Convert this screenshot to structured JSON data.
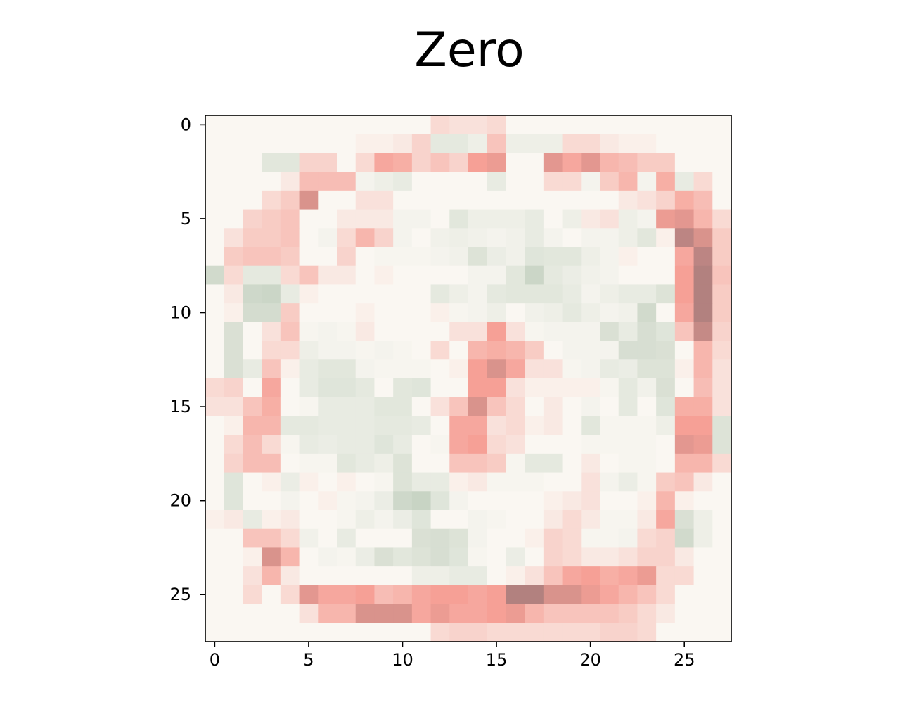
{
  "chart_data": {
    "type": "heatmap",
    "title": "Zero",
    "xlabel": "",
    "ylabel": "",
    "rows": 28,
    "cols": 28,
    "xlim": [
      -0.5,
      27.5
    ],
    "ylim": [
      27.5,
      -0.5
    ],
    "x_ticks": [
      0,
      5,
      10,
      15,
      20,
      25
    ],
    "y_ticks": [
      0,
      5,
      10,
      15,
      20,
      25
    ],
    "x_tick_labels": [
      "0",
      "5",
      "10",
      "15",
      "20",
      "25"
    ],
    "y_tick_labels": [
      "0",
      "5",
      "10",
      "15",
      "20",
      "25"
    ],
    "colormap": {
      "min_color": "#a87c7c",
      "mid_color": "#faf7f2",
      "max_color": "#bfcebc",
      "value_range": [
        -1,
        1
      ]
    },
    "grid": false,
    "legend": "none",
    "values": [
      [
        0.0,
        0.0,
        0.0,
        0.0,
        0.0,
        0.0,
        0.0,
        0.0,
        0.0,
        0.0,
        0.0,
        0.0,
        -0.2,
        -0.15,
        -0.15,
        -0.2,
        0.0,
        0.0,
        0.0,
        0.0,
        0.0,
        0.0,
        0.0,
        0.0,
        0.0,
        0.0,
        0.0,
        0.0
      ],
      [
        0.0,
        0.0,
        0.0,
        0.0,
        0.0,
        0.0,
        0.0,
        0.0,
        -0.05,
        -0.05,
        -0.1,
        -0.25,
        0.35,
        0.35,
        0.2,
        -0.35,
        0.2,
        0.2,
        0.2,
        -0.2,
        -0.2,
        -0.1,
        -0.05,
        -0.05,
        0.0,
        0.0,
        0.0,
        0.0
      ],
      [
        0.0,
        0.0,
        0.0,
        0.4,
        0.4,
        -0.25,
        -0.25,
        0.0,
        -0.2,
        -0.55,
        -0.5,
        -0.25,
        -0.35,
        -0.25,
        -0.6,
        -0.65,
        0.0,
        0.0,
        -0.7,
        -0.55,
        -0.7,
        -0.45,
        -0.4,
        -0.3,
        -0.3,
        0.0,
        0.0,
        0.0
      ],
      [
        0.0,
        0.0,
        0.0,
        0.0,
        -0.1,
        -0.4,
        -0.4,
        -0.4,
        0.1,
        0.2,
        0.3,
        0.0,
        0.0,
        0.0,
        0.0,
        0.3,
        0.0,
        0.0,
        -0.2,
        -0.2,
        0.1,
        -0.3,
        -0.45,
        0.1,
        -0.5,
        0.3,
        -0.2,
        0.0
      ],
      [
        0.0,
        0.0,
        0.0,
        -0.2,
        -0.3,
        -0.75,
        0.0,
        0.0,
        -0.15,
        -0.15,
        0.0,
        0.0,
        0.0,
        0.0,
        0.0,
        0.0,
        0.0,
        0.0,
        0.0,
        0.0,
        0.0,
        0.0,
        -0.1,
        -0.15,
        -0.25,
        -0.5,
        -0.4,
        0.0
      ],
      [
        0.0,
        0.0,
        -0.25,
        -0.3,
        -0.35,
        0.0,
        0.0,
        -0.1,
        -0.1,
        -0.1,
        0.1,
        0.1,
        0.0,
        0.4,
        0.2,
        0.2,
        0.2,
        0.3,
        0.0,
        0.2,
        -0.1,
        -0.15,
        0.2,
        0.1,
        -0.65,
        -0.7,
        -0.45,
        -0.2
      ],
      [
        0.0,
        -0.15,
        -0.3,
        -0.3,
        -0.35,
        0.0,
        0.1,
        -0.2,
        -0.45,
        -0.25,
        0.1,
        0.0,
        0.15,
        0.2,
        0.15,
        0.1,
        0.15,
        0.3,
        0.1,
        0.0,
        0.1,
        0.1,
        0.2,
        0.4,
        -0.05,
        -0.9,
        -0.75,
        -0.3
      ],
      [
        0.0,
        -0.3,
        -0.35,
        -0.35,
        -0.3,
        0.0,
        0.0,
        -0.25,
        0.0,
        0.05,
        0.05,
        0.05,
        0.1,
        0.15,
        0.5,
        0.25,
        0.15,
        0.45,
        0.4,
        0.4,
        0.2,
        0.1,
        -0.05,
        0.0,
        0.0,
        -0.55,
        -0.9,
        -0.3
      ],
      [
        0.7,
        -0.2,
        0.35,
        0.35,
        -0.2,
        -0.35,
        -0.1,
        -0.1,
        0.0,
        -0.05,
        0.0,
        0.0,
        0.0,
        0.0,
        0.1,
        0.1,
        0.4,
        0.8,
        0.35,
        0.25,
        0.15,
        0.1,
        0.0,
        0.0,
        0.0,
        -0.6,
        -0.95,
        -0.35
      ],
      [
        0.0,
        -0.1,
        0.75,
        0.8,
        0.3,
        -0.05,
        0.0,
        0.0,
        0.0,
        0.0,
        0.0,
        0.0,
        0.35,
        0.2,
        0.1,
        0.35,
        0.4,
        0.4,
        0.4,
        0.3,
        0.1,
        0.2,
        0.3,
        0.3,
        0.5,
        -0.6,
        -0.95,
        -0.3
      ],
      [
        0.0,
        -0.05,
        0.65,
        0.65,
        -0.3,
        0.0,
        0.0,
        0.0,
        -0.05,
        0.0,
        0.0,
        0.0,
        -0.05,
        0.05,
        0.1,
        0.2,
        0.0,
        0.15,
        0.2,
        0.35,
        0.2,
        0.1,
        0.15,
        0.7,
        0.0,
        -0.55,
        -0.95,
        -0.3
      ],
      [
        0.0,
        0.55,
        0.0,
        -0.15,
        -0.35,
        0.05,
        0.1,
        0.05,
        -0.1,
        0.0,
        0.0,
        0.0,
        0.0,
        -0.15,
        -0.15,
        -0.6,
        -0.15,
        0.05,
        0.1,
        0.1,
        0.1,
        0.55,
        0.3,
        0.6,
        0.45,
        -0.35,
        -0.85,
        -0.25
      ],
      [
        0.0,
        0.55,
        0.0,
        -0.2,
        -0.2,
        0.2,
        0.1,
        0.1,
        0.05,
        0.1,
        0.05,
        0.0,
        -0.2,
        0.0,
        -0.45,
        -0.5,
        -0.45,
        -0.3,
        0.0,
        0.1,
        0.1,
        0.1,
        0.6,
        0.6,
        0.55,
        0.0,
        -0.45,
        -0.2
      ],
      [
        0.0,
        0.55,
        0.3,
        -0.35,
        -0.05,
        0.3,
        0.4,
        0.4,
        0.1,
        0.05,
        0.05,
        0.05,
        0.0,
        -0.05,
        -0.6,
        -0.75,
        -0.55,
        -0.15,
        -0.15,
        0.05,
        0.1,
        0.3,
        0.25,
        0.5,
        0.5,
        -0.05,
        -0.45,
        -0.15
      ],
      [
        -0.2,
        -0.25,
        0.0,
        -0.55,
        0.0,
        0.3,
        0.45,
        0.45,
        0.35,
        0.0,
        0.4,
        0.45,
        0.0,
        0.0,
        -0.6,
        -0.6,
        -0.15,
        -0.05,
        -0.05,
        -0.05,
        -0.05,
        0.05,
        0.35,
        0.15,
        0.55,
        0.0,
        -0.4,
        -0.15
      ],
      [
        -0.15,
        -0.15,
        -0.35,
        -0.5,
        0.0,
        0.05,
        0.3,
        0.3,
        0.3,
        0.4,
        0.4,
        0.0,
        -0.15,
        -0.35,
        -0.75,
        -0.35,
        -0.2,
        0.0,
        -0.1,
        0.0,
        0.1,
        0.0,
        0.35,
        0.0,
        0.45,
        -0.5,
        -0.5,
        -0.15
      ],
      [
        0.0,
        -0.05,
        -0.45,
        -0.45,
        0.35,
        0.35,
        0.3,
        0.3,
        0.3,
        0.35,
        0.35,
        0.3,
        0.0,
        -0.55,
        -0.55,
        -0.15,
        -0.2,
        -0.05,
        -0.1,
        0.0,
        0.4,
        0.05,
        0.05,
        0.05,
        0.2,
        -0.6,
        -0.6,
        0.5
      ],
      [
        0.0,
        -0.2,
        -0.4,
        -0.2,
        0.05,
        0.3,
        0.25,
        0.3,
        0.3,
        0.45,
        0.3,
        0.0,
        0.05,
        -0.55,
        -0.6,
        -0.2,
        -0.15,
        0.0,
        0.0,
        0.0,
        0.05,
        0.05,
        0.05,
        0.05,
        0.0,
        -0.7,
        -0.65,
        0.5
      ],
      [
        0.0,
        -0.25,
        -0.4,
        -0.4,
        0.0,
        0.05,
        0.05,
        0.4,
        0.3,
        0.2,
        0.5,
        0.0,
        0.0,
        -0.35,
        -0.35,
        -0.3,
        0.05,
        0.35,
        0.35,
        0.0,
        -0.1,
        0.0,
        0.05,
        0.05,
        0.0,
        -0.45,
        -0.45,
        -0.2
      ],
      [
        0.0,
        0.45,
        0.0,
        -0.05,
        0.25,
        -0.05,
        0.0,
        -0.05,
        0.0,
        0.05,
        0.5,
        0.3,
        0.3,
        -0.05,
        -0.1,
        0.05,
        0.05,
        0.05,
        0.0,
        0.0,
        -0.15,
        0.1,
        0.25,
        0.05,
        -0.3,
        -0.35,
        -0.1,
        0.0
      ],
      [
        0.0,
        0.45,
        0.0,
        0.0,
        0.1,
        0.0,
        -0.05,
        0.05,
        0.1,
        0.25,
        0.75,
        0.85,
        0.45,
        0.1,
        0.0,
        0.0,
        0.0,
        0.0,
        -0.05,
        -0.1,
        -0.15,
        0.0,
        0.0,
        -0.05,
        -0.45,
        -0.05,
        0.0,
        0.0
      ],
      [
        -0.05,
        -0.1,
        0.3,
        -0.05,
        -0.1,
        0.0,
        0.0,
        0.05,
        0.2,
        0.1,
        0.25,
        0.45,
        0.0,
        0.0,
        0.1,
        0.05,
        0.0,
        0.0,
        -0.1,
        -0.2,
        -0.1,
        0.05,
        0.05,
        -0.1,
        -0.55,
        0.55,
        0.2,
        0.0
      ],
      [
        0.0,
        0.0,
        -0.35,
        -0.35,
        -0.2,
        0.15,
        0.0,
        0.3,
        0.0,
        0.0,
        0.0,
        0.55,
        0.6,
        0.5,
        0.1,
        0.0,
        0.0,
        -0.05,
        -0.25,
        -0.2,
        0.05,
        0.05,
        0.1,
        -0.2,
        -0.25,
        0.7,
        0.2,
        0.0
      ],
      [
        0.0,
        0.0,
        -0.05,
        -0.75,
        -0.45,
        0.0,
        0.1,
        0.05,
        0.25,
        0.55,
        0.4,
        0.5,
        0.6,
        0.45,
        0.05,
        0.0,
        0.25,
        0.0,
        -0.25,
        -0.2,
        -0.1,
        -0.1,
        -0.15,
        -0.25,
        -0.25,
        -0.1,
        0.0,
        0.0
      ],
      [
        0.0,
        0.0,
        -0.15,
        -0.45,
        -0.1,
        0.0,
        0.0,
        0.0,
        0.0,
        0.0,
        0.0,
        0.2,
        0.2,
        0.3,
        0.3,
        0.0,
        -0.05,
        -0.15,
        -0.35,
        -0.55,
        -0.6,
        -0.5,
        -0.55,
        -0.65,
        -0.2,
        -0.2,
        0.0,
        0.0
      ],
      [
        0.0,
        0.0,
        -0.2,
        0.0,
        -0.2,
        -0.7,
        -0.55,
        -0.55,
        -0.6,
        -0.4,
        -0.45,
        -0.55,
        -0.6,
        -0.6,
        -0.55,
        -0.6,
        -0.95,
        -0.95,
        -0.75,
        -0.75,
        -0.65,
        -0.55,
        -0.45,
        -0.35,
        -0.2,
        0.0,
        0.0,
        0.0
      ],
      [
        0.0,
        0.0,
        0.0,
        0.0,
        0.0,
        -0.15,
        -0.45,
        -0.45,
        -0.75,
        -0.75,
        -0.75,
        -0.55,
        -0.65,
        -0.55,
        -0.55,
        -0.6,
        -0.65,
        -0.45,
        -0.35,
        -0.35,
        -0.35,
        -0.35,
        -0.3,
        -0.2,
        -0.1,
        0.0,
        0.0,
        0.0
      ],
      [
        0.0,
        0.0,
        0.0,
        0.0,
        0.0,
        0.0,
        0.0,
        0.0,
        0.0,
        0.0,
        0.0,
        0.0,
        -0.2,
        -0.25,
        -0.25,
        -0.2,
        -0.2,
        -0.2,
        -0.2,
        -0.2,
        -0.2,
        -0.25,
        -0.25,
        -0.2,
        0.0,
        0.0,
        0.0,
        0.0
      ]
    ]
  }
}
